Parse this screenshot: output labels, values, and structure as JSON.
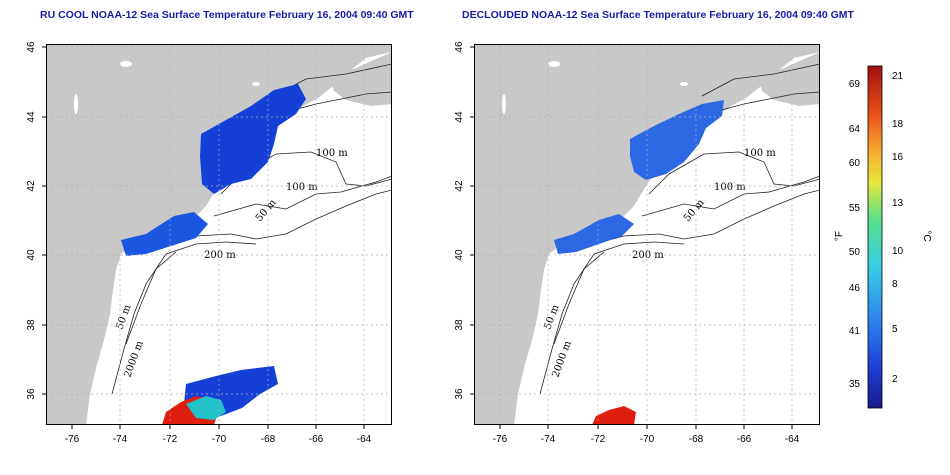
{
  "maps": [
    {
      "title": "RU COOL NOAA-12 Sea Surface Temperature February 16, 2004 09:40 GMT",
      "x_ticks": [
        "-76",
        "-74",
        "-72",
        "-70",
        "-68",
        "-66",
        "-64"
      ],
      "y_ticks": [
        "36",
        "38",
        "40",
        "42",
        "44",
        "46"
      ],
      "contour_labels": [
        "100 m",
        "100 m",
        "50 m",
        "200 m",
        "50 m",
        "2000 m"
      ]
    },
    {
      "title": "DECLOUDED NOAA-12 Sea Surface Temperature February 16, 2004 09:40 GMT",
      "x_ticks": [
        "-76",
        "-74",
        "-72",
        "-70",
        "-68",
        "-66",
        "-64"
      ],
      "y_ticks": [
        "36",
        "38",
        "40",
        "42",
        "44",
        "46"
      ],
      "contour_labels": [
        "100 m",
        "100 m",
        "50 m",
        "200 m",
        "50 m",
        "2000 m"
      ]
    }
  ],
  "legend": {
    "unit_f": "°F",
    "unit_c": "°C",
    "f_ticks": [
      "69",
      "64",
      "60",
      "55",
      "50",
      "46",
      "41",
      "35"
    ],
    "c_ticks": [
      "21",
      "18",
      "16",
      "13",
      "10",
      "8",
      "5",
      "2"
    ]
  },
  "colors": {
    "title": "#1a1aa8",
    "land": "#c8c8c8",
    "water": "#ffffff",
    "sst_cold": "#1540d8",
    "sst_warm": "#e01e10"
  }
}
